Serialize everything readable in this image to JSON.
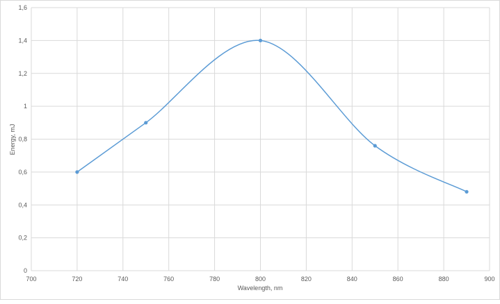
{
  "chart_data": {
    "type": "line",
    "smooth": true,
    "markers": true,
    "x": [
      720,
      750,
      800,
      850,
      890
    ],
    "series": [
      {
        "values": [
          0.6,
          0.9,
          1.4,
          0.76,
          0.48
        ]
      }
    ],
    "xlabel": "Wavelength, nm",
    "ylabel": "Energy, mJ",
    "xlim": [
      700,
      900
    ],
    "ylim": [
      0,
      1.6
    ],
    "xticks": [
      "700",
      "720",
      "740",
      "760",
      "780",
      "800",
      "820",
      "840",
      "860",
      "880",
      "900"
    ],
    "yticks": [
      "0",
      "0,2",
      "0,4",
      "0,6",
      "0,8",
      "1",
      "1,2",
      "1,4",
      "1,6"
    ],
    "grid": true,
    "line_color": "#5b9bd5",
    "grid_color": "#d9d9d9"
  }
}
